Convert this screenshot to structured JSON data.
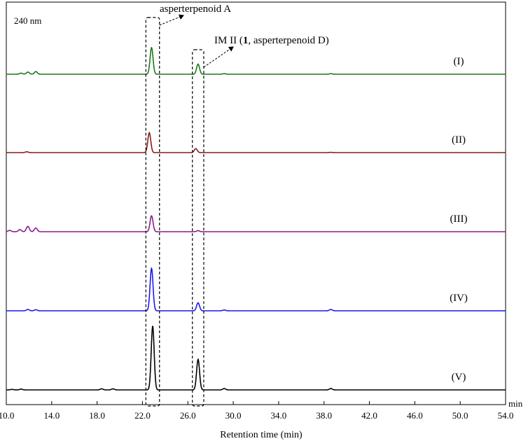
{
  "chart_data": {
    "type": "line",
    "title": "",
    "wavelength_label": "240 nm",
    "xlabel": "Retention time (min)",
    "x_unit": "min",
    "xlim": [
      10.0,
      54.0
    ],
    "xticks": [
      10.0,
      14.0,
      18.0,
      22.0,
      26.0,
      30.0,
      34.0,
      38.0,
      42.0,
      46.0,
      50.0,
      54.0
    ],
    "xtick_labels": [
      "10.0",
      "14.0",
      "18.0",
      "22.0",
      "26.0",
      "30.0",
      "34.0",
      "38.0",
      "42.0",
      "46.0",
      "50.0",
      "54.0"
    ],
    "grid": false,
    "legend": "none",
    "annotations": [
      {
        "text_prefix": "",
        "text_bold": "",
        "text_suffix": "asperterpenoid A",
        "x_range": [
          22.3,
          23.5
        ]
      },
      {
        "text_prefix": "IM II (",
        "text_bold": "1",
        "text_suffix": ", asperterpenoid D)",
        "x_range": [
          26.4,
          27.4
        ]
      }
    ],
    "series": [
      {
        "label": "(I)",
        "color": "#1a7a1a",
        "baseline": 0.0,
        "peaks": [
          {
            "x": 11.3,
            "h": 0.04
          },
          {
            "x": 11.9,
            "h": 0.08
          },
          {
            "x": 12.6,
            "h": 0.1
          },
          {
            "x": 22.8,
            "h": 1.0
          },
          {
            "x": 26.9,
            "h": 0.38
          },
          {
            "x": 29.2,
            "h": 0.02
          },
          {
            "x": 38.6,
            "h": 0.02
          }
        ]
      },
      {
        "label": "(II)",
        "color": "#8b1a1a",
        "baseline": 0.0,
        "peaks": [
          {
            "x": 11.8,
            "h": 0.03
          },
          {
            "x": 22.6,
            "h": 0.75
          },
          {
            "x": 26.7,
            "h": 0.15
          },
          {
            "x": 38.6,
            "h": 0.01
          }
        ]
      },
      {
        "label": "(III)",
        "color": "#8b1a8b",
        "baseline": 0.0,
        "peaks": [
          {
            "x": 10.3,
            "h": 0.05
          },
          {
            "x": 11.2,
            "h": 0.08
          },
          {
            "x": 11.9,
            "h": 0.2
          },
          {
            "x": 12.6,
            "h": 0.14
          },
          {
            "x": 22.8,
            "h": 0.6
          },
          {
            "x": 26.9,
            "h": 0.04
          }
        ]
      },
      {
        "label": "(IV)",
        "color": "#1a1aee",
        "baseline": 0.0,
        "peaks": [
          {
            "x": 11.9,
            "h": 0.05
          },
          {
            "x": 12.6,
            "h": 0.04
          },
          {
            "x": 22.8,
            "h": 1.6
          },
          {
            "x": 26.9,
            "h": 0.3
          },
          {
            "x": 29.2,
            "h": 0.03
          },
          {
            "x": 38.6,
            "h": 0.05
          }
        ]
      },
      {
        "label": "(V)",
        "color": "#000000",
        "baseline": 0.0,
        "peaks": [
          {
            "x": 10.5,
            "h": 0.02
          },
          {
            "x": 11.3,
            "h": 0.03
          },
          {
            "x": 18.4,
            "h": 0.04
          },
          {
            "x": 19.4,
            "h": 0.04
          },
          {
            "x": 22.9,
            "h": 2.4
          },
          {
            "x": 26.9,
            "h": 1.15
          },
          {
            "x": 29.2,
            "h": 0.05
          },
          {
            "x": 38.6,
            "h": 0.05
          }
        ]
      }
    ]
  }
}
